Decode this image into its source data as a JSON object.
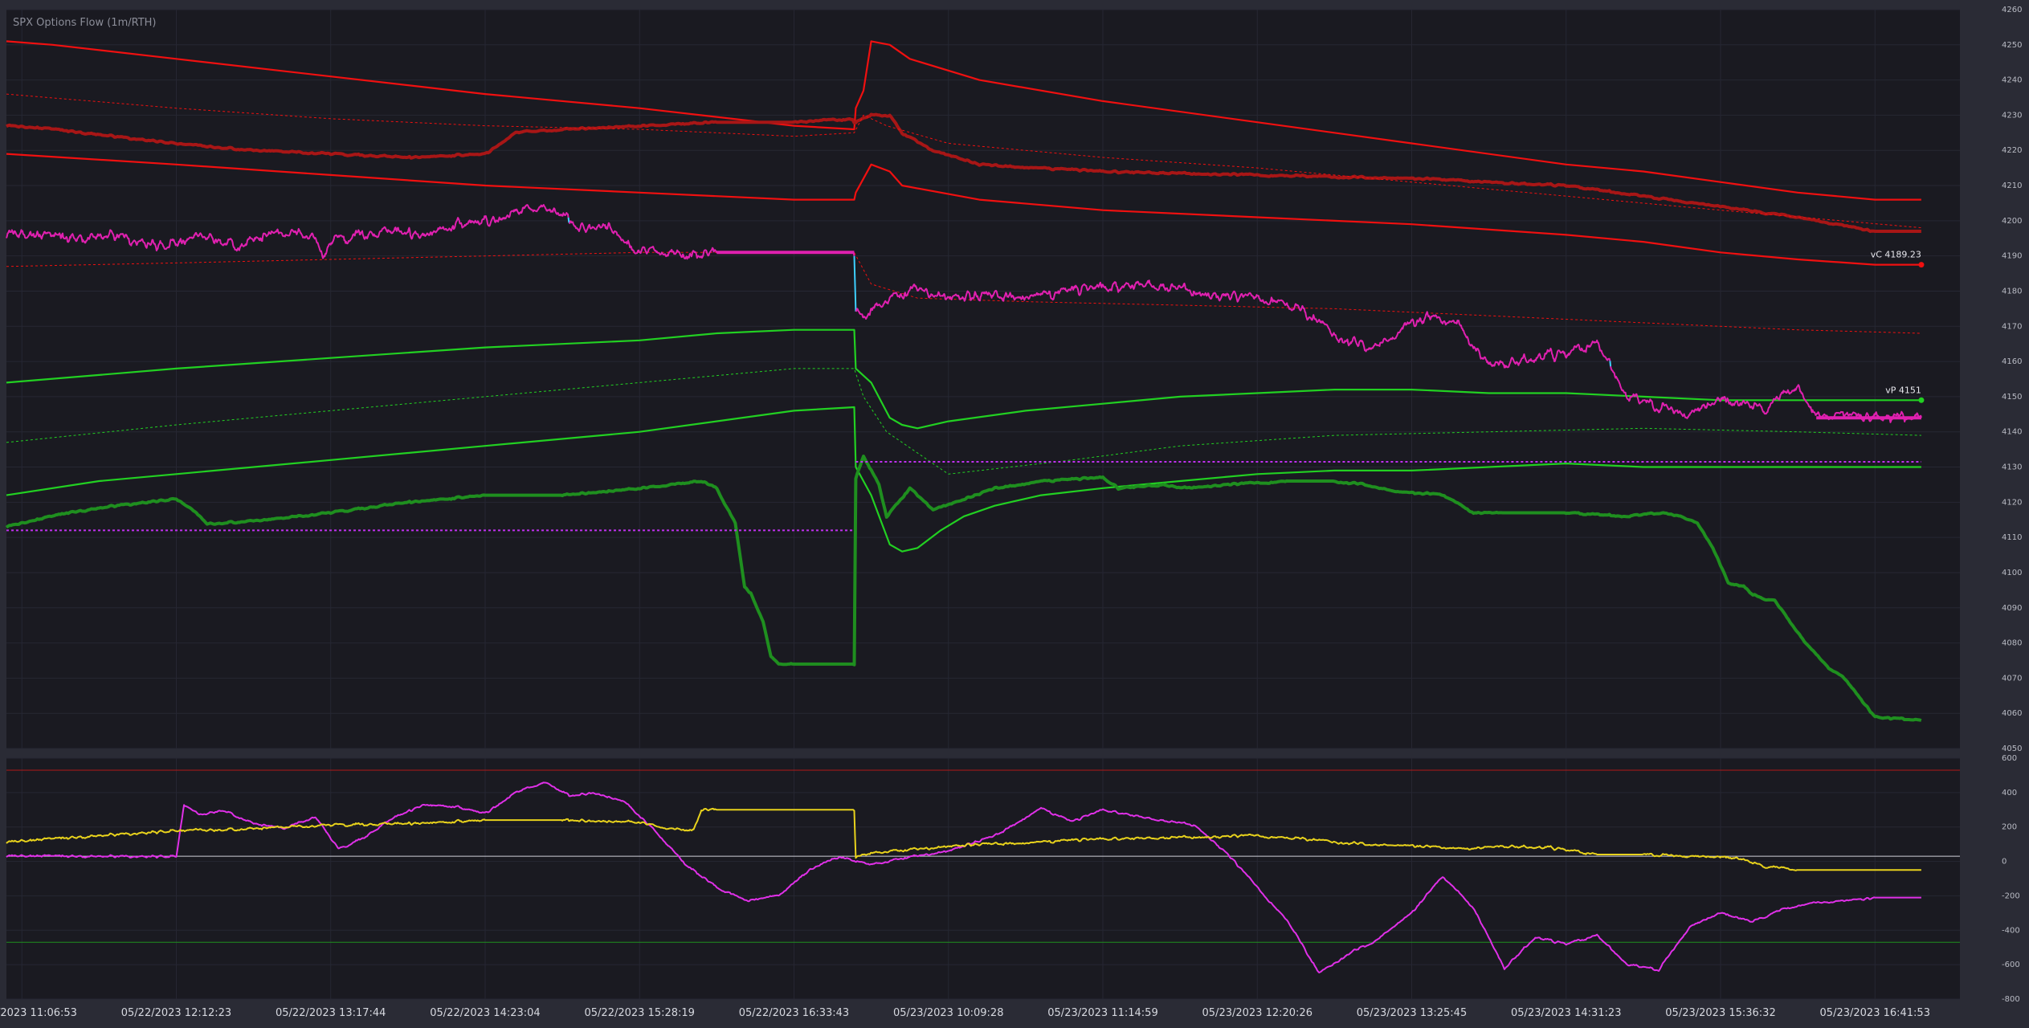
{
  "title": "SPX Options Flow (1m/RTH)",
  "colors": {
    "background": "#2a2b35",
    "pane": "#1a1a21",
    "grid": "#262733",
    "callWalls": "#f01010",
    "callGamma": "#a81616",
    "putWalls": "#22d022",
    "putGamma": "#1f8f1f",
    "priceUp": "#e020b0",
    "priceDown": "#3ed0ff",
    "magentaRef": "#c030f0",
    "flowMagenta": "#e030e8",
    "flowYellow": "#e8d21c",
    "zeroLine": "#d0d0d8"
  },
  "chart_data": [
    {
      "type": "line",
      "title": "SPX Options Flow (1m/RTH)",
      "xlabel": "",
      "ylabel": "",
      "ylim": [
        4050,
        4260
      ],
      "x_tick_labels": [
        "05/22/2023 11:06:53",
        "05/22/2023 12:12:23",
        "05/22/2023 13:17:44",
        "05/22/2023 14:23:04",
        "05/22/2023 15:28:19",
        "05/22/2023 16:33:43",
        "05/23/2023 10:09:28",
        "05/23/2023 11:14:59",
        "05/23/2023 12:20:26",
        "05/23/2023 13:25:45",
        "05/23/2023 14:31:23",
        "05/23/2023 15:36:32",
        "05/23/2023 16:41:53"
      ],
      "y_ticks": [
        4050,
        4060,
        4070,
        4080,
        4090,
        4100,
        4110,
        4120,
        4130,
        4140,
        4150,
        4160,
        4170,
        4180,
        4190,
        4200,
        4210,
        4220,
        4230,
        4240,
        4250,
        4260
      ],
      "x_range": [
        -0.1,
        12.55
      ],
      "grid": true,
      "annotations": [
        {
          "text": "vC 4189.23",
          "x": 12.3,
          "y": 4187.5
        },
        {
          "text": "vP 4151",
          "x": 12.3,
          "y": 4149
        }
      ],
      "series": [
        {
          "role": "call-wall-upper",
          "style": "solid",
          "x": [
            -0.1,
            0.2,
            1.0,
            2.0,
            3.0,
            4.0,
            5.0,
            5.39,
            5.4,
            5.45,
            5.5,
            5.62,
            5.75,
            6.2,
            7.0,
            8.0,
            9.0,
            10.0,
            10.5,
            11.0,
            11.5,
            12.0,
            12.3
          ],
          "y": [
            4251,
            4250,
            4246,
            4241,
            4236,
            4232,
            4227,
            4226,
            4232,
            4237,
            4251,
            4250,
            4246,
            4240,
            4234,
            4228,
            4222,
            4216,
            4214,
            4211,
            4208,
            4206,
            4206
          ]
        },
        {
          "role": "call-gamma",
          "style": "thick",
          "x": [
            -0.1,
            0.2,
            0.6,
            1.0,
            1.5,
            2.0,
            2.5,
            3.0,
            3.2,
            3.5,
            4.0,
            4.5,
            5.0,
            5.38,
            5.39,
            5.5,
            5.62,
            5.7,
            5.9,
            6.2,
            7.0,
            8.0,
            9.0,
            10.0,
            10.5,
            11.0,
            11.5,
            12.0,
            12.3
          ],
          "y": [
            4227,
            4226,
            4224,
            4222,
            4220,
            4219,
            4218,
            4219,
            4225,
            4226,
            4227,
            4228,
            4228,
            4229,
            4228,
            4230,
            4230,
            4225,
            4220,
            4216,
            4214,
            4213,
            4212,
            4210,
            4207,
            4204,
            4201,
            4197,
            4197
          ]
        },
        {
          "role": "call-wall-lower",
          "style": "solid",
          "x": [
            -0.1,
            1.0,
            2.0,
            3.0,
            4.0,
            5.0,
            5.39,
            5.4,
            5.45,
            5.5,
            5.62,
            5.7,
            6.2,
            7.0,
            8.0,
            9.0,
            10.0,
            10.5,
            11.0,
            11.5,
            12.0,
            12.3
          ],
          "y": [
            4219,
            4216,
            4213,
            4210,
            4208,
            4206,
            4206,
            4208,
            4212,
            4216,
            4214,
            4210,
            4206,
            4203,
            4201,
            4199,
            4196,
            4194,
            4191,
            4189,
            4187.5,
            4187.5
          ]
        },
        {
          "role": "call-reference",
          "style": "dotted",
          "x": [
            -0.1,
            1.0,
            2.0,
            3.0,
            4.0,
            5.0,
            5.39,
            5.45,
            5.6,
            6.0,
            7.0,
            8.0,
            9.0,
            10.0,
            11.0,
            12.3
          ],
          "y": [
            4236,
            4232,
            4229,
            4227,
            4226,
            4224,
            4225,
            4230,
            4227,
            4222,
            4218,
            4215,
            4211,
            4207,
            4203,
            4198
          ]
        },
        {
          "role": "upper-reference",
          "style": "dotted",
          "x": [
            -0.1,
            1.0,
            2.0,
            3.0,
            4.0,
            5.0,
            5.39,
            5.5,
            5.8,
            6.5,
            7.5,
            8.5,
            9.5,
            10.5,
            11.5,
            12.3
          ],
          "y": [
            4187,
            4188,
            4189,
            4190,
            4191,
            4191,
            4191,
            4182,
            4178,
            4177,
            4176,
            4175,
            4173,
            4171,
            4169,
            4168
          ]
        },
        {
          "role": "put-wall-upper",
          "style": "solid",
          "x": [
            -0.1,
            1.0,
            2.0,
            3.0,
            4.0,
            4.5,
            5.0,
            5.39,
            5.4,
            5.5,
            5.62,
            5.7,
            5.8,
            6.0,
            6.5,
            7.0,
            7.5,
            8.0,
            8.5,
            9.0,
            9.5,
            10.0,
            10.5,
            11.0,
            11.5,
            12.3
          ],
          "y": [
            4154,
            4158,
            4161,
            4164,
            4166,
            4168,
            4169,
            4169,
            4158,
            4154,
            4144,
            4142,
            4141,
            4143,
            4146,
            4148,
            4150,
            4151,
            4152,
            4152,
            4151,
            4151,
            4150,
            4149,
            4149,
            4149
          ]
        },
        {
          "role": "put-reference",
          "style": "dotted",
          "x": [
            -0.1,
            1.0,
            2.0,
            3.0,
            4.0,
            5.0,
            5.39,
            5.45,
            5.6,
            6.0,
            6.8,
            7.5,
            8.5,
            9.5,
            10.5,
            11.5,
            12.3
          ],
          "y": [
            4137,
            4142,
            4146,
            4150,
            4154,
            4158,
            4158,
            4150,
            4140,
            4128,
            4132,
            4136,
            4139,
            4140,
            4141,
            4140,
            4139
          ]
        },
        {
          "role": "put-wall-lower",
          "style": "solid",
          "x": [
            -0.1,
            0.5,
            1.0,
            2.0,
            3.0,
            4.0,
            5.0,
            5.39,
            5.4,
            5.5,
            5.62,
            5.7,
            5.8,
            5.95,
            6.1,
            6.3,
            6.6,
            7.0,
            7.5,
            8.0,
            8.5,
            9.0,
            9.5,
            10.0,
            10.5,
            11.0,
            12.3
          ],
          "y": [
            4122,
            4126,
            4128,
            4132,
            4136,
            4140,
            4146,
            4147,
            4130,
            4122,
            4108,
            4106,
            4107,
            4112,
            4116,
            4119,
            4122,
            4124,
            4126,
            4128,
            4129,
            4129,
            4130,
            4131,
            4130,
            4130,
            4130
          ]
        },
        {
          "role": "put-gamma",
          "style": "thick",
          "x": [
            -0.1,
            0.3,
            0.6,
            1.0,
            1.1,
            1.2,
            1.25,
            1.6,
            2.0,
            2.5,
            3.0,
            3.5,
            4.0,
            4.4,
            4.5,
            4.62,
            4.68,
            4.72,
            4.8,
            4.85,
            4.9,
            5.0,
            5.39,
            5.4,
            5.45,
            5.55,
            5.6,
            5.75,
            5.9,
            6.05,
            6.3,
            6.6,
            7.0,
            7.1,
            7.4,
            7.5,
            7.8,
            8.2,
            8.5,
            8.7,
            8.9,
            9.2,
            9.4,
            9.6,
            10.0,
            10.4,
            10.6,
            10.75,
            10.85,
            10.95,
            11.05,
            11.15,
            11.2,
            11.25,
            11.35,
            11.55,
            11.7,
            11.8,
            12.0,
            12.3
          ],
          "y": [
            4113,
            4117,
            4119,
            4121,
            4118,
            4114,
            4114,
            4115,
            4117,
            4120,
            4122,
            4122,
            4124,
            4126,
            4124,
            4114,
            4096,
            4094,
            4086,
            4076,
            4074,
            4074,
            4074,
            4127,
            4133,
            4125,
            4116,
            4124,
            4118,
            4120,
            4124,
            4126,
            4127,
            4124,
            4125,
            4124,
            4125,
            4126,
            4126,
            4125,
            4123,
            4122,
            4117,
            4117,
            4117,
            4116,
            4117,
            4116,
            4114,
            4107,
            4097,
            4096,
            4094,
            4093,
            4092,
            4080,
            4073,
            4070,
            4059,
            4058
          ]
        },
        {
          "role": "price",
          "style": "price",
          "x": [
            -0.1,
            0.3,
            0.6,
            0.9,
            1.2,
            1.4,
            1.6,
            1.9,
            1.95,
            2.0,
            2.2,
            2.4,
            2.6,
            2.8,
            3.0,
            3.2,
            3.45,
            3.6,
            3.8,
            3.95,
            4.1,
            4.3,
            4.5,
            5.39,
            5.4,
            5.45,
            5.6,
            5.8,
            6.0,
            6.3,
            6.6,
            7.0,
            7.3,
            7.6,
            7.9,
            8.1,
            8.3,
            8.5,
            8.7,
            8.9,
            8.95,
            9.1,
            9.3,
            9.5,
            9.9,
            10.0,
            10.1,
            10.2,
            10.3,
            10.4,
            10.6,
            10.8,
            11.0,
            11.1,
            11.3,
            11.5,
            11.6,
            12.3
          ],
          "y": [
            4196,
            4195,
            4196,
            4193,
            4196,
            4193,
            4196,
            4196,
            4188,
            4194,
            4196,
            4197,
            4196,
            4199,
            4200,
            4202,
            4204,
            4198,
            4199,
            4192,
            4192,
            4190,
            4191,
            4191,
            4176,
            4172,
            4178,
            4181,
            4178,
            4179,
            4179,
            4181,
            4182,
            4180,
            4178,
            4178,
            4174,
            4168,
            4164,
            4167,
            4170,
            4172,
            4170,
            4159,
            4162,
            4162,
            4164,
            4165,
            4158,
            4150,
            4147,
            4145,
            4149,
            4148,
            4147,
            4153,
            4145,
            4144
          ]
        },
        {
          "role": "magenta-reference",
          "style": "dotted-thick",
          "x": [
            -0.1,
            5.39
          ],
          "y": [
            4112,
            4112
          ]
        },
        {
          "role": "magenta-reference",
          "style": "dotted-thick",
          "x": [
            5.4,
            12.3
          ],
          "y": [
            4131.5,
            4131.5
          ]
        }
      ]
    },
    {
      "type": "line",
      "title": "",
      "xlabel": "",
      "ylabel": "",
      "ylim": [
        -800,
        600
      ],
      "y_ticks": [
        600,
        400,
        200,
        0,
        -200,
        -400,
        -600,
        -800
      ],
      "x_range": [
        -0.1,
        12.55
      ],
      "grid": true,
      "reference_lines": [
        {
          "y": 530,
          "color": "#b01818"
        },
        {
          "y": 30,
          "color": "#d0d0d8"
        },
        {
          "y": -470,
          "color": "#1f8f1f"
        }
      ],
      "series": [
        {
          "role": "flow-magenta",
          "x": [
            -0.1,
            1.0,
            1.05,
            1.15,
            1.3,
            1.5,
            1.7,
            1.9,
            2.05,
            2.2,
            2.4,
            2.6,
            2.8,
            3.0,
            3.2,
            3.4,
            3.55,
            3.7,
            3.9,
            4.1,
            4.3,
            4.5,
            4.7,
            4.9,
            5.1,
            5.3,
            5.5,
            5.7,
            6.0,
            6.3,
            6.6,
            6.8,
            7.0,
            7.3,
            7.6,
            7.8,
            8.0,
            8.2,
            8.4,
            8.6,
            8.75,
            9.0,
            9.2,
            9.4,
            9.6,
            9.8,
            10.0,
            10.2,
            10.4,
            10.6,
            10.8,
            11.0,
            11.2,
            11.4,
            11.6,
            11.8,
            12.0,
            12.3
          ],
          "y": [
            30,
            30,
            330,
            270,
            300,
            220,
            190,
            260,
            70,
            130,
            250,
            330,
            320,
            280,
            400,
            460,
            380,
            400,
            350,
            180,
            -20,
            -150,
            -230,
            -200,
            -50,
            30,
            -20,
            20,
            60,
            150,
            310,
            230,
            300,
            250,
            210,
            50,
            -150,
            -350,
            -650,
            -530,
            -470,
            -300,
            -90,
            -270,
            -620,
            -440,
            -480,
            -430,
            -600,
            -630,
            -380,
            -300,
            -350,
            -280,
            -240,
            -230,
            -210,
            -210
          ]
        },
        {
          "role": "flow-yellow",
          "x": [
            -0.1,
            0.5,
            1.0,
            1.5,
            2.0,
            2.5,
            3.0,
            3.5,
            4.0,
            4.2,
            4.35,
            4.4,
            4.5,
            5.39,
            5.4,
            5.6,
            5.9,
            6.2,
            6.5,
            7.0,
            7.5,
            8.0,
            8.3,
            8.7,
            9.0,
            9.3,
            9.6,
            9.9,
            10.2,
            10.5,
            10.8,
            11.1,
            11.3,
            11.5,
            12.3
          ],
          "y": [
            110,
            150,
            180,
            190,
            210,
            220,
            240,
            240,
            230,
            190,
            180,
            300,
            300,
            300,
            30,
            60,
            80,
            100,
            110,
            130,
            140,
            150,
            130,
            100,
            90,
            70,
            90,
            80,
            40,
            40,
            30,
            20,
            -30,
            -50,
            -50
          ]
        }
      ]
    }
  ]
}
